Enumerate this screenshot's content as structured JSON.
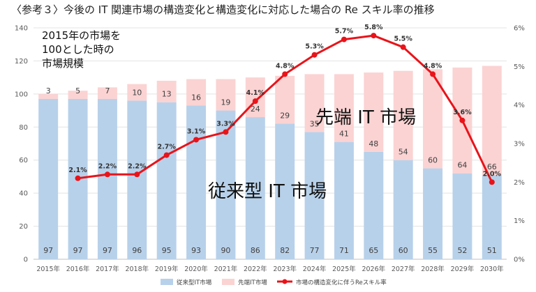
{
  "chart_data": {
    "type": "bar",
    "title": "〈参考３〉今後の IT 関連市場の構造変化と構造変化に対応した場合の Re スキル率の推移",
    "note_lines": [
      "2015年の市場を",
      "100とした時の",
      "市場規模"
    ],
    "categories": [
      "2015年",
      "2016年",
      "2017年",
      "2018年",
      "2019年",
      "2020年",
      "2021年",
      "2022年",
      "2023年",
      "2024年",
      "2025年",
      "2026年",
      "2027年",
      "2028年",
      "2029年",
      "2030年"
    ],
    "y_ticks": [
      "0",
      "20",
      "40",
      "60",
      "80",
      "100",
      "120",
      "140"
    ],
    "y2_ticks": [
      "0%",
      "1%",
      "2%",
      "3%",
      "4%",
      "5%",
      "6%"
    ],
    "ylim": [
      0,
      140
    ],
    "y2lim": [
      0,
      6
    ],
    "stacked": true,
    "series": [
      {
        "name": "従来型IT市場",
        "axis": "left",
        "color": "#b8d1ea",
        "values": [
          97,
          97,
          97,
          96,
          95,
          93,
          90,
          86,
          82,
          77,
          71,
          65,
          60,
          55,
          52,
          51
        ],
        "labels": [
          "97",
          "97",
          "97",
          "96",
          "95",
          "93",
          "90",
          "86",
          "82",
          "77",
          "71",
          "65",
          "60",
          "55",
          "52",
          "51"
        ]
      },
      {
        "name": "先端IT市場",
        "axis": "left",
        "color": "#fbd3d3",
        "values": [
          3,
          5,
          7,
          10,
          13,
          16,
          19,
          24,
          29,
          35,
          41,
          48,
          54,
          60,
          64,
          66
        ],
        "labels": [
          "3",
          "5",
          "7",
          "10",
          "13",
          "16",
          "19",
          "24",
          "29",
          "35",
          "41",
          "48",
          "54",
          "60",
          "64",
          "66"
        ]
      },
      {
        "name": "市場の構造変化に伴うReスキル率",
        "axis": "right",
        "type": "line",
        "color": "#e8141a",
        "values": [
          null,
          2.1,
          2.2,
          2.2,
          2.7,
          3.1,
          3.3,
          4.1,
          4.8,
          5.3,
          5.7,
          5.8,
          5.5,
          4.8,
          3.6,
          2.0
        ],
        "labels": [
          "",
          "2.1%",
          "2.2%",
          "2.2%",
          "2.7%",
          "3.1%",
          "3.3%",
          "4.1%",
          "4.8%",
          "5.3%",
          "5.7%",
          "5.8%",
          "5.5%",
          "4.8%",
          "3.6%",
          "2.0%"
        ]
      }
    ],
    "region_labels": {
      "advanced": "先端 IT 市場",
      "legacy": "従来型 IT 市場"
    },
    "grid": true,
    "legend_position": "bottom"
  }
}
